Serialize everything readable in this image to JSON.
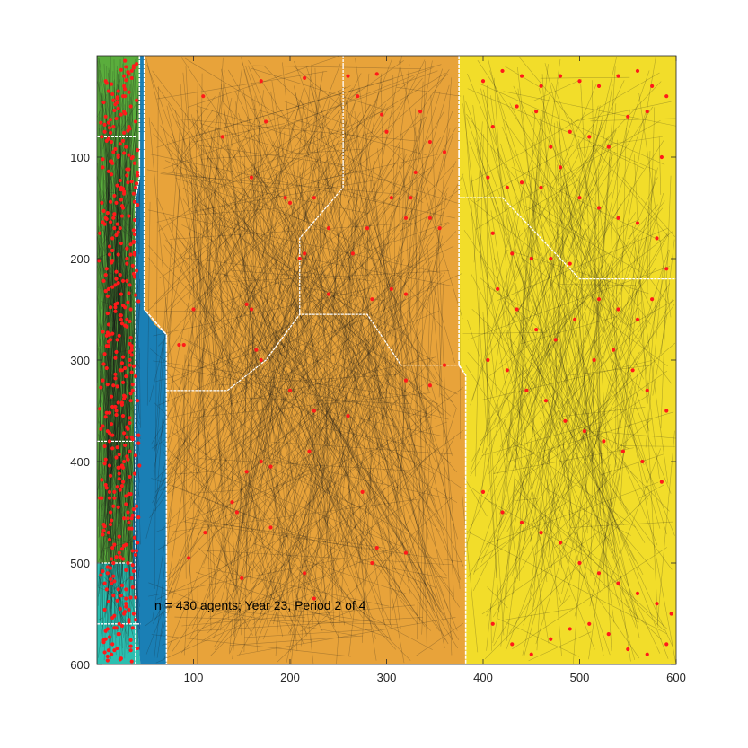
{
  "chart_data": {
    "type": "scatter",
    "title": "",
    "xlabel": "",
    "ylabel": "",
    "xlim": [
      0,
      600
    ],
    "ylim": [
      0,
      600
    ],
    "y_direction": "reversed",
    "grid": false,
    "x_ticks": [
      100,
      200,
      300,
      400,
      500,
      600
    ],
    "y_ticks": [
      100,
      200,
      300,
      400,
      500,
      600
    ],
    "x_tick_labels": [
      "100",
      "200",
      "300",
      "400",
      "500",
      "600"
    ],
    "y_tick_labels": [
      "100",
      "200",
      "300",
      "400",
      "500",
      "600"
    ],
    "annotation": "n = 430 agents; Year 23, Period 2 of 4",
    "agent_count": 430,
    "regions": [
      {
        "name": "green-left-strip",
        "color": "#5aad3c",
        "polygon": [
          [
            0,
            0
          ],
          [
            44,
            0
          ],
          [
            44,
            120
          ],
          [
            40,
            140
          ],
          [
            40,
            250
          ],
          [
            38,
            380
          ],
          [
            37,
            500
          ],
          [
            32,
            600
          ],
          [
            0,
            600
          ]
        ]
      },
      {
        "name": "cyan-bottom-left",
        "color": "#2bbfb0",
        "polygon": [
          [
            0,
            500
          ],
          [
            37,
            500
          ],
          [
            40,
            540
          ],
          [
            45,
            600
          ],
          [
            0,
            600
          ]
        ]
      },
      {
        "name": "blue-channel",
        "color": "#1a7fb5",
        "polygon": [
          [
            44,
            0
          ],
          [
            49,
            0
          ],
          [
            49,
            250
          ],
          [
            60,
            265
          ],
          [
            72,
            275
          ],
          [
            72,
            600
          ],
          [
            45,
            600
          ],
          [
            40,
            540
          ],
          [
            37,
            500
          ],
          [
            38,
            380
          ],
          [
            40,
            250
          ],
          [
            40,
            140
          ],
          [
            44,
            120
          ]
        ]
      },
      {
        "name": "orange-center",
        "color": "#e8a33a",
        "polygon": [
          [
            49,
            0
          ],
          [
            375,
            0
          ],
          [
            375,
            305
          ],
          [
            382,
            315
          ],
          [
            382,
            600
          ],
          [
            72,
            600
          ],
          [
            72,
            275
          ],
          [
            60,
            265
          ],
          [
            49,
            250
          ]
        ]
      },
      {
        "name": "yellow-right",
        "color": "#f2dd2a",
        "polygon": [
          [
            375,
            0
          ],
          [
            600,
            0
          ],
          [
            600,
            600
          ],
          [
            382,
            600
          ],
          [
            382,
            315
          ],
          [
            375,
            305
          ]
        ]
      }
    ],
    "boundaries": [
      [
        [
          255,
          0
        ],
        [
          255,
          130
        ],
        [
          210,
          180
        ],
        [
          210,
          255
        ],
        [
          250,
          255
        ],
        [
          280,
          255
        ],
        [
          315,
          305
        ],
        [
          375,
          305
        ]
      ],
      [
        [
          72,
          330
        ],
        [
          135,
          330
        ],
        [
          175,
          300
        ],
        [
          210,
          255
        ]
      ],
      [
        [
          375,
          140
        ],
        [
          420,
          140
        ],
        [
          500,
          220
        ],
        [
          600,
          220
        ]
      ],
      [
        [
          0,
          80
        ],
        [
          40,
          80
        ]
      ],
      [
        [
          0,
          380
        ],
        [
          38,
          380
        ]
      ],
      [
        [
          0,
          500
        ],
        [
          37,
          500
        ]
      ],
      [
        [
          0,
          560
        ],
        [
          45,
          560
        ]
      ]
    ],
    "points_x": [
      28,
      12,
      35,
      20,
      8,
      30,
      15,
      42,
      25,
      5,
      33,
      18,
      38,
      22,
      10,
      27,
      40,
      14,
      31,
      6,
      36,
      19,
      24,
      11,
      29,
      3,
      34,
      16,
      21,
      9,
      39,
      26,
      13,
      32,
      7,
      23,
      37,
      17,
      4,
      30,
      12,
      28,
      20,
      35,
      8,
      15,
      41,
      25,
      33,
      10,
      22,
      6,
      36,
      18,
      27,
      14,
      39,
      31,
      2,
      24,
      16,
      43,
      11,
      29,
      21,
      34,
      7,
      19,
      37,
      26,
      9,
      32,
      13,
      40,
      23,
      5,
      35,
      17,
      28,
      12,
      30,
      20,
      38,
      15,
      25,
      8,
      33,
      22,
      42,
      11,
      36,
      27,
      4,
      19,
      31,
      14,
      24,
      39,
      7,
      29,
      16,
      34,
      21,
      10,
      37,
      26,
      13,
      32,
      18,
      6,
      40,
      23,
      35,
      9,
      28,
      15,
      42,
      20,
      3,
      31,
      25,
      12,
      36,
      17,
      27,
      8,
      34,
      22,
      39,
      14,
      30,
      11,
      24,
      38,
      19,
      5,
      33,
      26,
      16,
      41,
      21,
      10,
      29,
      35,
      13,
      44,
      18,
      7,
      32,
      24,
      37,
      15,
      28,
      9,
      22,
      40,
      17,
      31,
      12,
      25,
      36,
      6,
      20,
      34,
      27,
      14,
      42,
      11,
      30,
      23,
      38,
      16,
      8,
      33,
      21,
      26,
      13,
      39,
      19,
      35,
      10,
      28,
      4,
      32,
      24,
      15,
      41,
      18,
      29,
      7,
      36,
      22,
      12,
      31,
      25,
      38,
      16,
      9,
      34,
      20,
      27,
      13,
      43,
      23,
      30,
      6,
      37,
      17,
      26,
      11,
      33,
      21,
      14,
      39,
      28,
      8,
      35,
      19,
      25,
      12,
      40,
      16,
      31,
      22,
      3,
      36,
      27,
      10,
      33,
      18,
      29,
      14,
      42,
      24,
      7,
      38,
      20,
      32,
      11,
      26,
      35,
      15,
      23,
      9,
      37,
      28,
      17,
      30,
      13,
      41,
      21,
      34,
      6,
      25,
      39,
      16,
      31,
      19,
      12,
      36,
      22,
      28,
      8,
      33,
      14,
      40,
      26,
      18,
      35,
      10,
      29,
      24,
      15,
      42,
      20,
      37,
      11,
      31,
      27,
      4,
      34,
      16,
      23,
      38,
      13,
      30,
      21,
      9,
      36,
      25,
      17,
      32,
      14,
      28,
      6,
      39,
      22,
      11,
      34,
      19,
      26,
      43,
      13,
      30,
      8,
      24,
      37,
      16,
      21,
      33,
      12,
      28,
      41,
      18,
      35,
      9,
      27,
      23,
      38,
      15,
      31,
      20,
      10,
      36,
      26,
      14,
      33,
      7,
      29,
      22,
      40,
      17,
      32,
      11,
      25,
      38,
      19,
      13,
      34,
      28,
      6,
      31,
      21,
      43,
      16,
      36,
      24,
      9,
      30,
      18,
      27,
      12,
      39,
      22,
      15,
      33,
      26,
      8,
      37,
      20,
      29,
      14,
      41,
      23,
      11,
      35,
      18,
      25,
      32,
      7,
      28,
      16,
      38,
      21,
      13,
      34,
      24,
      10,
      30,
      19,
      36,
      27,
      5,
      33,
      15,
      22,
      40,
      12,
      29,
      17,
      37,
      25,
      9,
      31,
      20,
      35,
      14,
      26,
      42,
      11,
      28,
      18,
      33,
      23,
      8,
      38,
      16,
      30,
      21,
      13,
      36,
      27,
      10
    ],
    "points_y": [
      20,
      35,
      50,
      62,
      75,
      90,
      104,
      118,
      132,
      145,
      158,
      170,
      184,
      196,
      210,
      222,
      236,
      248,
      260,
      272,
      286,
      298,
      310,
      324,
      336,
      348,
      362,
      374,
      386,
      398,
      412,
      424,
      436,
      450,
      462,
      474,
      488,
      500,
      512,
      526,
      538,
      550,
      564,
      576,
      588,
      28,
      44,
      58,
      70,
      84,
      98,
      110,
      124,
      138,
      150,
      164,
      176,
      190,
      202,
      216,
      228,
      242,
      254,
      266,
      280,
      292,
      304,
      318,
      330,
      342,
      356,
      368,
      380,
      394,
      406,
      418,
      432,
      444,
      456,
      470,
      482,
      494,
      508,
      520,
      532,
      546,
      558,
      570,
      584,
      596,
      15,
      40,
      66,
      92,
      118,
      144,
      170,
      196,
      222,
      248,
      274,
      300,
      326,
      352,
      378,
      404,
      430,
      456,
      482,
      508,
      534,
      560,
      586,
      25,
      55,
      85,
      115,
      145,
      175,
      205,
      235,
      265,
      295,
      325,
      355,
      385,
      415,
      445,
      475,
      505,
      535,
      565,
      595,
      12,
      48,
      80,
      112,
      148,
      180,
      212,
      244,
      276,
      308,
      340,
      372,
      404,
      436,
      468,
      500,
      532,
      564,
      590,
      30,
      60,
      100,
      130,
      160,
      200,
      230,
      260,
      290,
      320,
      350,
      390,
      420,
      450,
      480,
      510,
      540,
      570,
      10,
      38,
      68,
      98,
      128,
      158,
      188,
      218,
      248,
      278,
      308,
      338,
      368,
      398,
      428,
      458,
      488,
      518,
      548,
      578,
      22,
      52,
      82,
      112,
      142,
      172,
      202,
      232,
      262,
      292,
      322,
      352,
      382,
      412,
      442,
      472,
      502,
      532,
      562,
      592,
      18,
      46,
      76,
      106,
      136,
      166,
      196,
      226,
      256,
      286,
      316,
      346,
      376,
      406,
      436,
      466,
      496,
      526,
      556,
      586,
      33,
      63,
      93,
      123,
      153,
      183,
      213,
      243,
      273,
      303,
      333,
      363,
      393,
      423,
      453,
      483,
      513,
      543,
      573,
      8,
      42,
      72,
      102,
      132,
      162,
      192,
      222,
      252,
      282,
      312,
      342,
      372,
      402,
      432,
      462,
      492,
      522,
      552,
      582,
      27,
      57,
      87,
      117,
      147,
      177,
      207,
      237,
      267,
      297,
      327,
      357,
      387,
      417,
      447,
      477,
      507,
      537,
      567,
      597,
      14,
      44,
      74,
      104,
      134,
      164,
      194,
      224,
      254,
      284,
      314,
      344,
      374,
      404,
      434,
      464,
      494,
      524,
      554,
      584,
      36,
      66,
      96,
      126,
      156,
      186,
      216,
      246,
      276,
      306,
      336,
      366,
      396,
      426,
      456,
      486,
      516,
      546,
      576,
      5,
      35,
      65,
      95,
      125,
      155,
      185,
      215,
      245,
      275,
      305,
      335,
      365,
      395,
      425,
      455,
      485,
      515,
      545,
      575,
      24,
      54,
      84,
      114,
      144,
      174,
      204,
      234,
      264,
      294,
      324,
      354,
      384,
      414,
      444,
      474,
      504,
      534,
      564,
      594,
      16,
      46,
      76,
      106,
      136,
      166,
      196,
      226,
      256,
      286,
      316,
      346,
      376,
      406,
      436,
      466,
      496,
      526,
      556,
      586,
      40,
      70,
      100,
      130,
      160,
      190,
      220,
      250,
      280,
      310,
      340,
      370,
      400,
      430,
      460,
      490,
      520,
      550,
      580,
      11,
      41,
      71,
      101,
      131,
      161,
      191,
      221,
      251,
      281,
      311,
      341,
      371,
      401,
      431,
      461,
      491,
      521,
      551,
      581,
      28,
      58,
      88
    ],
    "extra_points": [
      [
        110,
        40
      ],
      [
        170,
        25
      ],
      [
        215,
        22
      ],
      [
        260,
        20
      ],
      [
        290,
        18
      ],
      [
        130,
        80
      ],
      [
        175,
        65
      ],
      [
        160,
        120
      ],
      [
        195,
        140
      ],
      [
        200,
        145
      ],
      [
        225,
        140
      ],
      [
        270,
        40
      ],
      [
        295,
        58
      ],
      [
        300,
        75
      ],
      [
        335,
        55
      ],
      [
        345,
        85
      ],
      [
        360,
        95
      ],
      [
        330,
        115
      ],
      [
        305,
        140
      ],
      [
        325,
        140
      ],
      [
        345,
        160
      ],
      [
        355,
        170
      ],
      [
        320,
        160
      ],
      [
        240,
        170
      ],
      [
        280,
        170
      ],
      [
        265,
        195
      ],
      [
        215,
        195
      ],
      [
        210,
        200
      ],
      [
        305,
        230
      ],
      [
        320,
        235
      ],
      [
        285,
        240
      ],
      [
        240,
        235
      ],
      [
        155,
        245
      ],
      [
        160,
        250
      ],
      [
        100,
        250
      ],
      [
        90,
        285
      ],
      [
        170,
        300
      ],
      [
        165,
        290
      ],
      [
        85,
        285
      ],
      [
        225,
        350
      ],
      [
        260,
        355
      ],
      [
        155,
        410
      ],
      [
        170,
        400
      ],
      [
        180,
        405
      ],
      [
        140,
        440
      ],
      [
        145,
        450
      ],
      [
        180,
        465
      ],
      [
        150,
        515
      ],
      [
        215,
        510
      ],
      [
        225,
        535
      ],
      [
        285,
        500
      ],
      [
        290,
        485
      ],
      [
        320,
        490
      ],
      [
        275,
        430
      ],
      [
        320,
        320
      ],
      [
        345,
        325
      ],
      [
        360,
        305
      ],
      [
        220,
        390
      ],
      [
        200,
        330
      ],
      [
        95,
        495
      ],
      [
        112,
        470
      ],
      [
        400,
        25
      ],
      [
        420,
        15
      ],
      [
        440,
        20
      ],
      [
        460,
        30
      ],
      [
        480,
        20
      ],
      [
        500,
        25
      ],
      [
        520,
        30
      ],
      [
        540,
        20
      ],
      [
        560,
        15
      ],
      [
        575,
        30
      ],
      [
        590,
        40
      ],
      [
        410,
        70
      ],
      [
        435,
        50
      ],
      [
        455,
        55
      ],
      [
        470,
        90
      ],
      [
        490,
        75
      ],
      [
        510,
        80
      ],
      [
        530,
        90
      ],
      [
        550,
        60
      ],
      [
        570,
        55
      ],
      [
        585,
        100
      ],
      [
        405,
        120
      ],
      [
        425,
        130
      ],
      [
        440,
        125
      ],
      [
        460,
        130
      ],
      [
        480,
        110
      ],
      [
        500,
        140
      ],
      [
        520,
        150
      ],
      [
        540,
        160
      ],
      [
        560,
        165
      ],
      [
        580,
        180
      ],
      [
        410,
        175
      ],
      [
        430,
        195
      ],
      [
        450,
        200
      ],
      [
        470,
        200
      ],
      [
        490,
        205
      ],
      [
        520,
        240
      ],
      [
        540,
        250
      ],
      [
        560,
        260
      ],
      [
        575,
        240
      ],
      [
        590,
        210
      ],
      [
        415,
        230
      ],
      [
        435,
        250
      ],
      [
        455,
        270
      ],
      [
        475,
        280
      ],
      [
        495,
        260
      ],
      [
        515,
        300
      ],
      [
        535,
        290
      ],
      [
        555,
        310
      ],
      [
        570,
        330
      ],
      [
        590,
        350
      ],
      [
        405,
        300
      ],
      [
        425,
        310
      ],
      [
        445,
        330
      ],
      [
        465,
        340
      ],
      [
        485,
        360
      ],
      [
        505,
        370
      ],
      [
        525,
        380
      ],
      [
        545,
        390
      ],
      [
        565,
        400
      ],
      [
        585,
        420
      ],
      [
        400,
        430
      ],
      [
        420,
        450
      ],
      [
        440,
        460
      ],
      [
        460,
        470
      ],
      [
        480,
        480
      ],
      [
        500,
        500
      ],
      [
        520,
        510
      ],
      [
        540,
        520
      ],
      [
        560,
        530
      ],
      [
        580,
        540
      ],
      [
        595,
        550
      ],
      [
        410,
        560
      ],
      [
        430,
        580
      ],
      [
        450,
        590
      ],
      [
        470,
        575
      ],
      [
        490,
        565
      ],
      [
        510,
        560
      ],
      [
        530,
        570
      ],
      [
        550,
        585
      ],
      [
        570,
        590
      ],
      [
        590,
        580
      ]
    ]
  }
}
